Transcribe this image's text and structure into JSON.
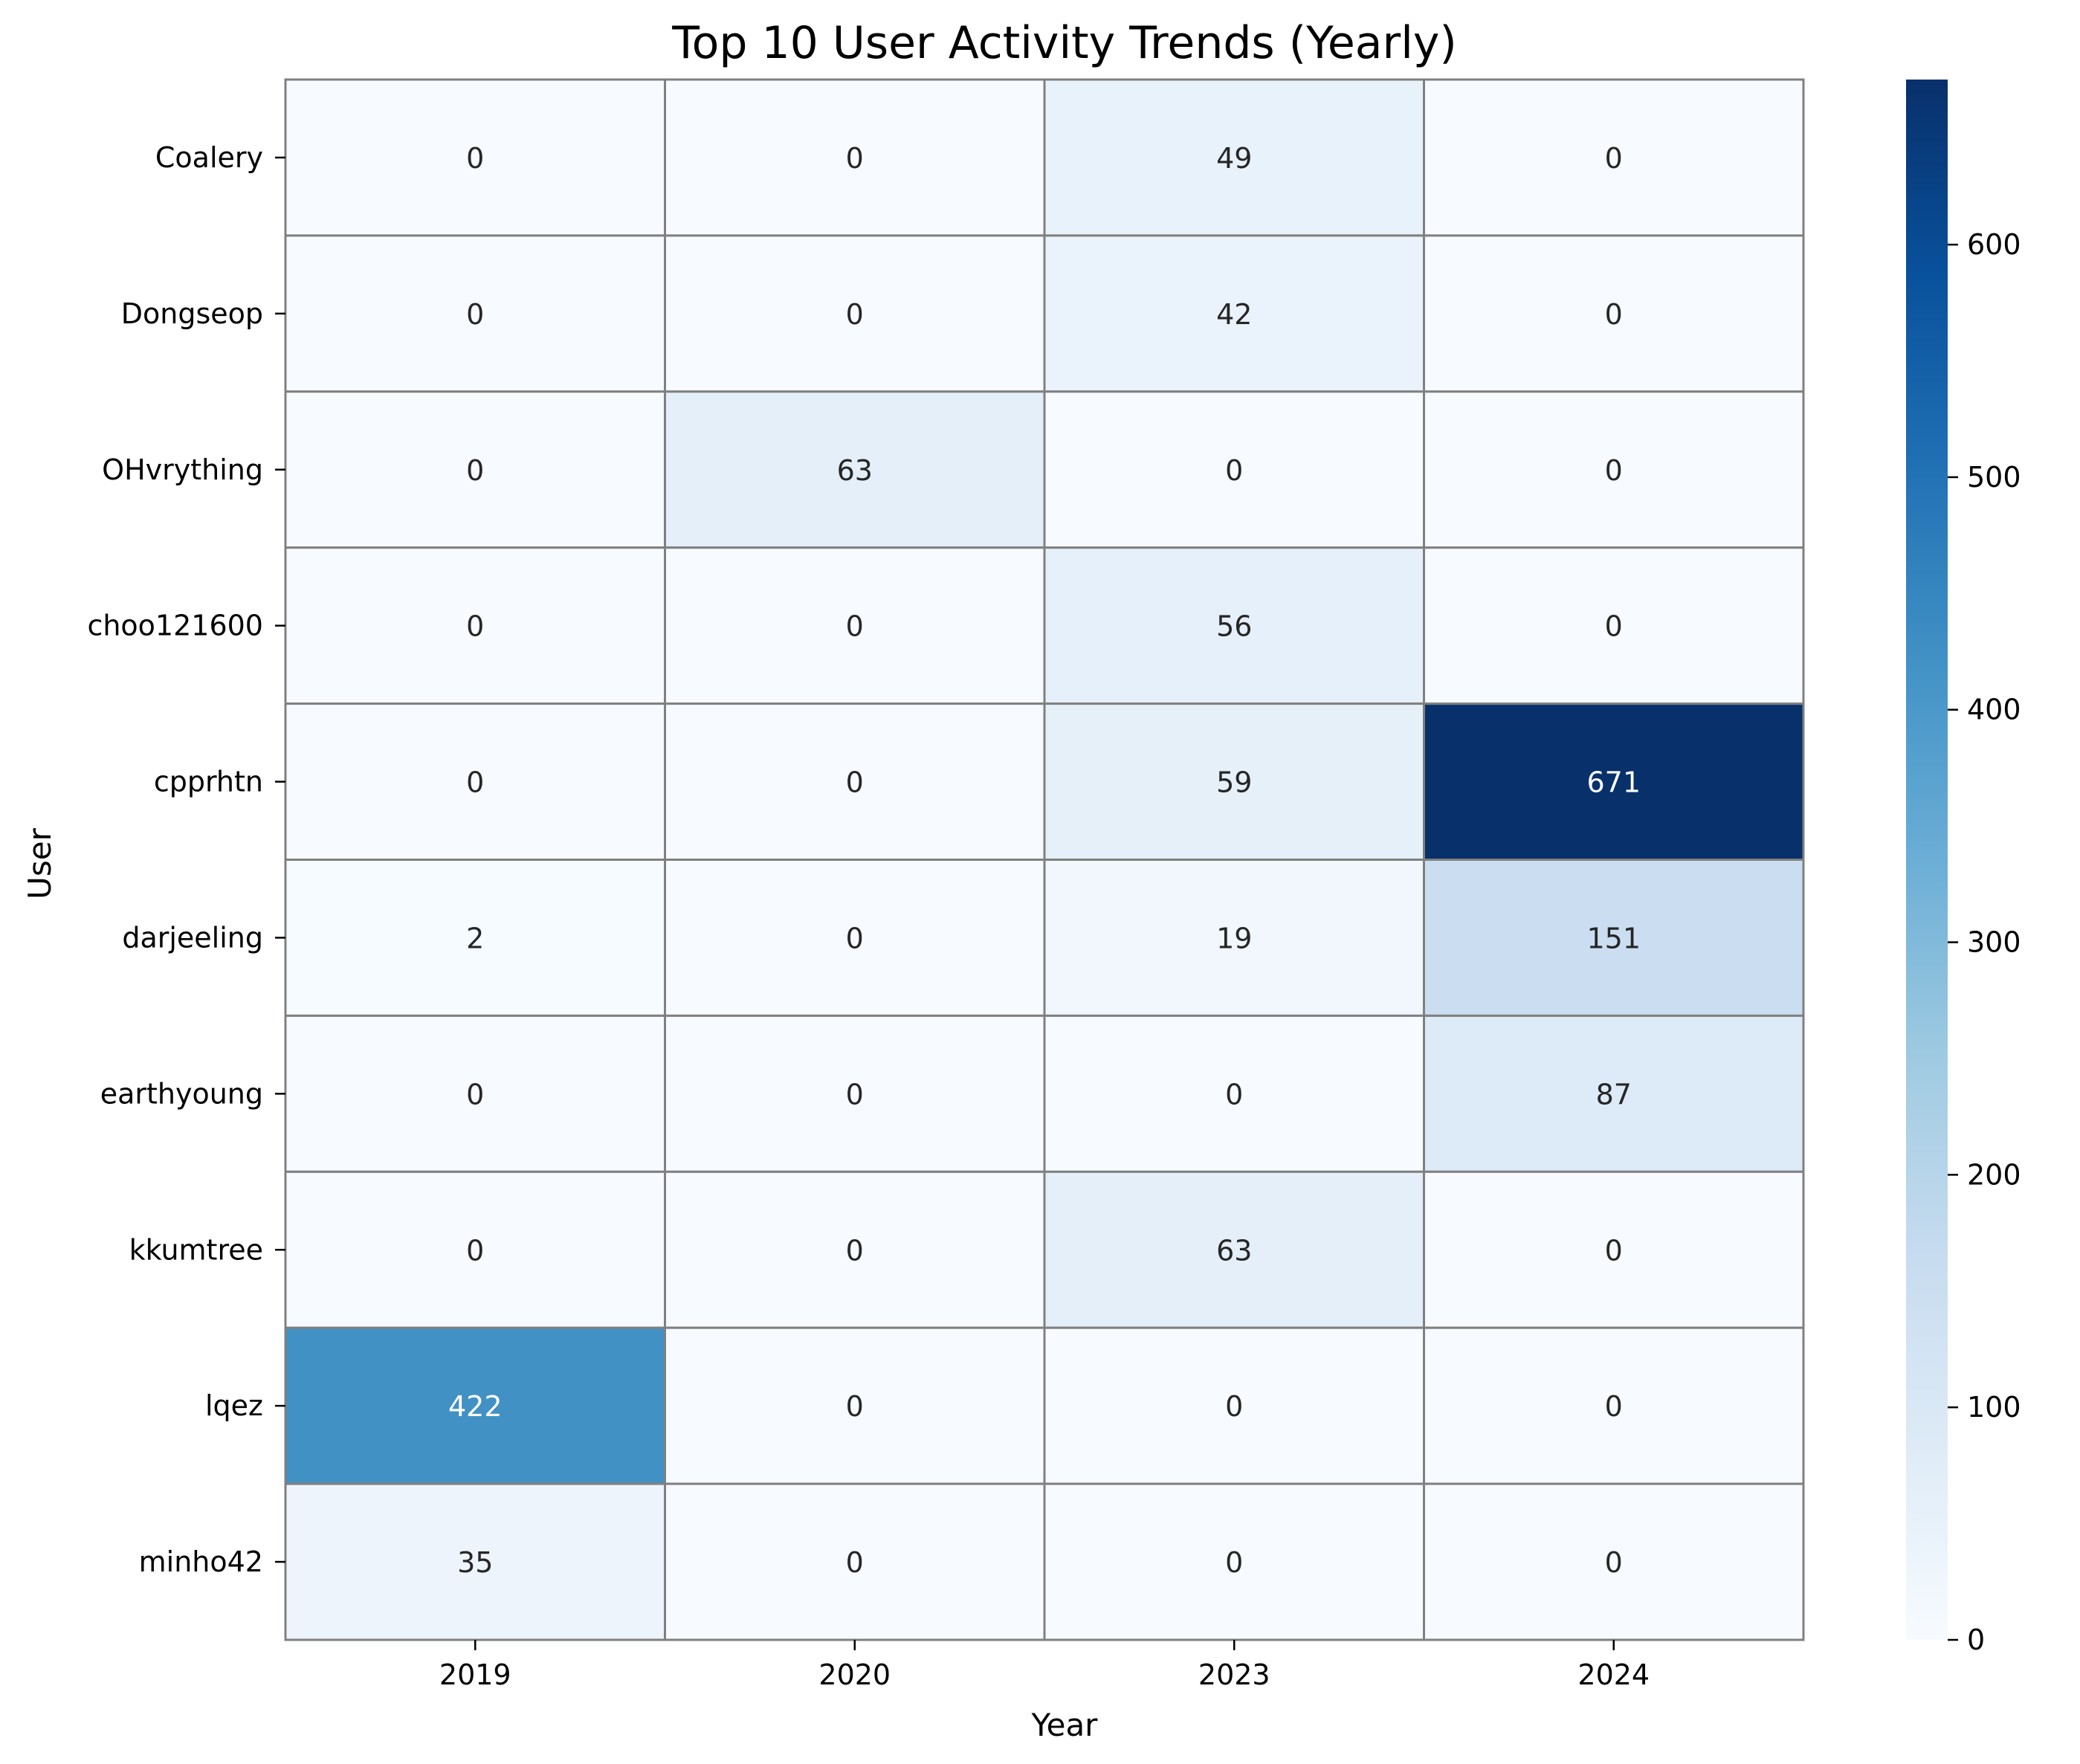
{
  "chart_data": {
    "type": "heatmap",
    "title": "Top 10 User Activity Trends (Yearly)",
    "xlabel": "Year",
    "ylabel": "User",
    "x_categories": [
      "2019",
      "2020",
      "2023",
      "2024"
    ],
    "y_categories": [
      "Coalery",
      "Dongseop",
      "OHvrything",
      "choo121600",
      "cpprhtn",
      "darjeeling",
      "earthyoung",
      "kkumtree",
      "lqez",
      "minho42"
    ],
    "values": [
      [
        0,
        0,
        49,
        0
      ],
      [
        0,
        0,
        42,
        0
      ],
      [
        0,
        63,
        0,
        0
      ],
      [
        0,
        0,
        56,
        0
      ],
      [
        0,
        0,
        59,
        671
      ],
      [
        2,
        0,
        19,
        151
      ],
      [
        0,
        0,
        0,
        87
      ],
      [
        0,
        0,
        63,
        0
      ],
      [
        422,
        0,
        0,
        0
      ],
      [
        35,
        0,
        0,
        0
      ]
    ],
    "colorbar": {
      "min": 0,
      "max": 671,
      "ticks": [
        0,
        100,
        200,
        300,
        400,
        500,
        600
      ]
    },
    "colormap": "Blues",
    "colormap_stops": [
      "#f7fbff",
      "#deebf7",
      "#c6dbef",
      "#9ecae1",
      "#6baed6",
      "#4292c6",
      "#2171b5",
      "#08519c",
      "#08306b"
    ],
    "cell_border_color": "#808080",
    "annotate_values": true,
    "legend": "colorbar-right"
  }
}
